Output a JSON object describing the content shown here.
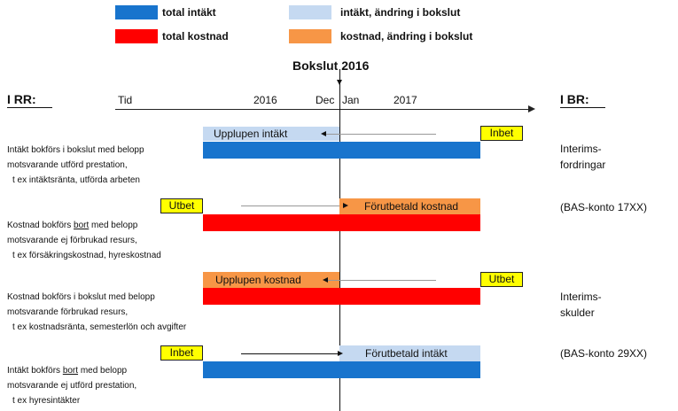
{
  "legend": [
    {
      "label": "total intäkt",
      "color": "#1874cd"
    },
    {
      "label": "intäkt, ändring i bokslut",
      "color": "#c5d9f1"
    },
    {
      "label": "total kostnad",
      "color": "#ff0000"
    },
    {
      "label": "kostnad, ändring i bokslut",
      "color": "#f79646"
    }
  ],
  "title": "Bokslut 2016",
  "left_header": "I RR:",
  "right_header": "I BR:",
  "timeline": {
    "tid": "Tid",
    "year_a": "2016",
    "dec": "Dec",
    "jan": "Jan",
    "year_b": "2017"
  },
  "rows": [
    {
      "bar_label": "Upplupen intäkt",
      "tag": "Inbet",
      "desc": {
        "line1": "Intäkt bokförs i bokslut med belopp",
        "line2": "motsvarande utförd prestation,",
        "line3": "t ex intäktsränta, utförda arbeten"
      },
      "right": [
        "Interims-",
        "fordringar"
      ]
    },
    {
      "bar_label": "Förutbetald kostnad",
      "tag": "Utbet",
      "desc": {
        "line1_pre": "Kostnad bokförs ",
        "line1_u": "bort",
        "line1_post": " med belopp",
        "line2": "motsvarande ej förbrukad resurs,",
        "line3": "t ex försäkringskostnad, hyreskostnad"
      },
      "right": [
        "(BAS-konto 17XX)"
      ]
    },
    {
      "bar_label": "Upplupen kostnad",
      "tag": "Utbet",
      "desc": {
        "line1": "Kostnad bokförs i bokslut med belopp",
        "line2": "motsvarande förbrukad resurs,",
        "line3": "t ex kostnadsränta, semesterlön och avgifter"
      },
      "right": [
        "Interims-",
        "skulder"
      ]
    },
    {
      "bar_label": "Förutbetald intäkt",
      "tag": "Inbet",
      "desc": {
        "line1_pre": "Intäkt bokförs ",
        "line1_u": "bort",
        "line1_post": " med belopp",
        "line2": "motsvarande ej utförd prestation,",
        "line3": "t ex hyresintäkter"
      },
      "right": [
        "(BAS-konto 29XX)"
      ]
    }
  ]
}
